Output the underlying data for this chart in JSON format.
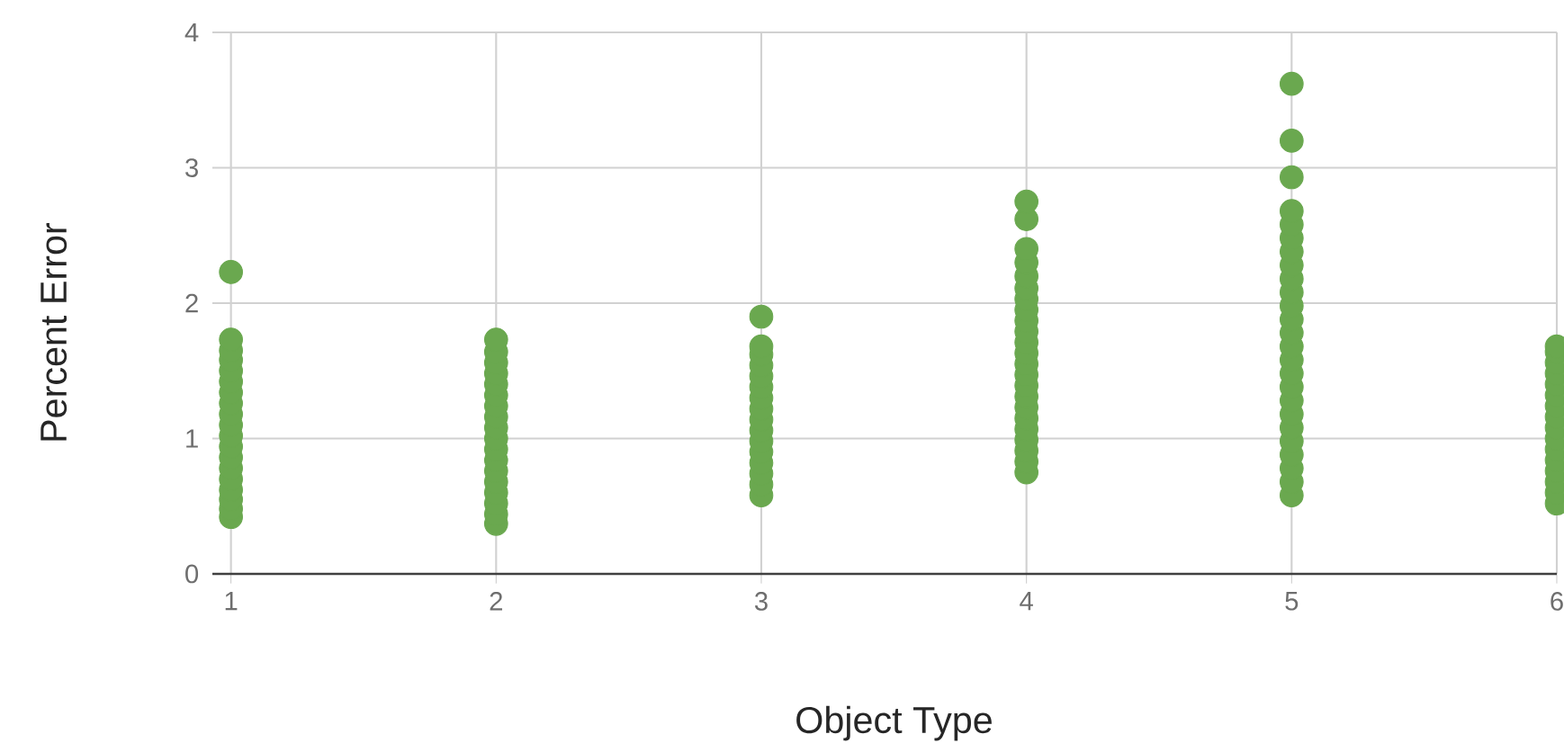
{
  "chart_data": {
    "type": "scatter",
    "xlabel": "Object Type",
    "ylabel": "Percent Error",
    "x": [
      1,
      1,
      1,
      1,
      1,
      1,
      1,
      1,
      1,
      1,
      1,
      1,
      1,
      1,
      1,
      1,
      1,
      1,
      1,
      2,
      2,
      2,
      2,
      2,
      2,
      2,
      2,
      2,
      2,
      2,
      2,
      2,
      2,
      2,
      2,
      2,
      2,
      3,
      3,
      3,
      3,
      3,
      3,
      3,
      3,
      3,
      3,
      3,
      3,
      3,
      3,
      3,
      3,
      4,
      4,
      4,
      4,
      4,
      4,
      4,
      4,
      4,
      4,
      4,
      4,
      4,
      4,
      4,
      4,
      4,
      4,
      4,
      4,
      4,
      4,
      4,
      5,
      5,
      5,
      5,
      5,
      5,
      5,
      5,
      5,
      5,
      5,
      5,
      5,
      5,
      5,
      5,
      5,
      5,
      5,
      5,
      5,
      5,
      5,
      5,
      5,
      6,
      6,
      6,
      6,
      6,
      6,
      6,
      6,
      6,
      6,
      6,
      6,
      6,
      6,
      6,
      6
    ],
    "values": [
      0.42,
      0.48,
      0.55,
      0.62,
      0.7,
      0.78,
      0.86,
      0.94,
      1.02,
      1.1,
      1.18,
      1.26,
      1.34,
      1.42,
      1.5,
      1.58,
      1.65,
      1.73,
      2.23,
      0.37,
      0.44,
      0.52,
      0.6,
      0.68,
      0.76,
      0.84,
      0.92,
      1.0,
      1.08,
      1.16,
      1.24,
      1.32,
      1.4,
      1.48,
      1.56,
      1.64,
      1.73,
      0.58,
      0.66,
      0.74,
      0.82,
      0.9,
      0.98,
      1.06,
      1.14,
      1.22,
      1.3,
      1.38,
      1.46,
      1.54,
      1.62,
      1.68,
      1.9,
      0.75,
      0.83,
      0.91,
      0.99,
      1.07,
      1.15,
      1.23,
      1.31,
      1.39,
      1.47,
      1.55,
      1.63,
      1.71,
      1.79,
      1.87,
      1.95,
      2.03,
      2.11,
      2.2,
      2.3,
      2.4,
      2.62,
      2.75,
      0.58,
      0.68,
      0.78,
      0.88,
      0.98,
      1.08,
      1.18,
      1.28,
      1.38,
      1.48,
      1.58,
      1.68,
      1.78,
      1.88,
      1.98,
      2.08,
      2.18,
      2.28,
      2.38,
      2.48,
      2.58,
      2.68,
      2.93,
      3.2,
      3.62,
      0.52,
      0.6,
      0.68,
      0.76,
      0.84,
      0.92,
      1.0,
      1.08,
      1.16,
      1.24,
      1.32,
      1.4,
      1.48,
      1.56,
      1.64,
      1.68
    ],
    "color": "#6aa84f",
    "xlim": [
      0.93,
      6
    ],
    "xticks": [
      1,
      2,
      3,
      4,
      5,
      6
    ],
    "ylim": [
      0,
      4
    ],
    "yticks": [
      0,
      1,
      2,
      3,
      4
    ],
    "grid": true
  }
}
